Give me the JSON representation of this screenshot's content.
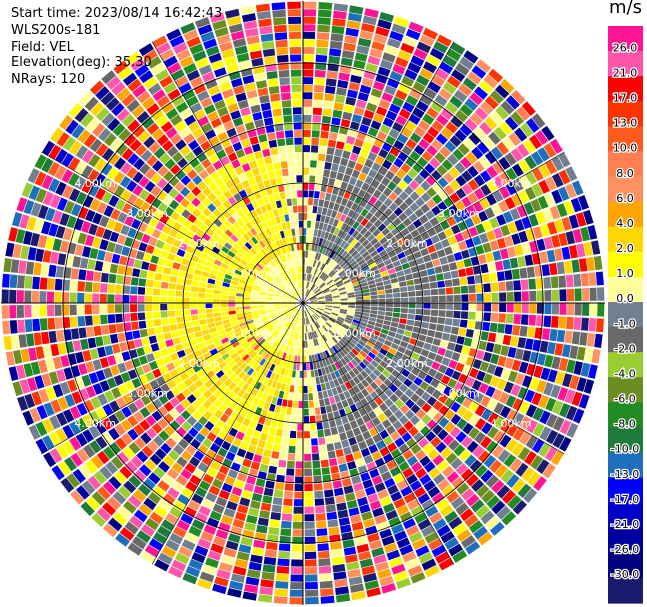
{
  "header": {
    "start_time": "Start time: 2023/08/14 16:42:43",
    "instrument": "WLS200s-181",
    "field": "Field: VEL",
    "elevation": "Elevation(deg): 35.30",
    "nrays": "NRays: 120"
  },
  "colorbar": {
    "unit": "m/s",
    "ticks": [
      "26.0",
      "21.0",
      "17.0",
      "13.0",
      "10.0",
      "8.0",
      "6.0",
      "4.0",
      "2.0",
      "1.0",
      "0.0",
      "-1.0",
      "-2.0",
      "-4.0",
      "-6.0",
      "-8.0",
      "-10.0",
      "-13.0",
      "-17.0",
      "-21.0",
      "-26.0",
      "-30.0"
    ],
    "colors": [
      "#ff1493",
      "#ff55aa",
      "#ff0000",
      "#ff3300",
      "#ff5a1e",
      "#ff7f50",
      "#ff9060",
      "#ffa500",
      "#ffd700",
      "#ffff00",
      "#ffff99",
      "#708090",
      "#696969",
      "#9acd32",
      "#6b8e23",
      "#228b22",
      "#1e7b3a",
      "#1e6ebe",
      "#0000ff",
      "#0000cd",
      "#0000a0",
      "#000080",
      "#1a1a70"
    ]
  },
  "chart_data": {
    "type": "heatmap",
    "subtype": "polar PPI (plan position indicator)",
    "field": "VEL",
    "units": "m/s",
    "nrays": 120,
    "elevation_deg": 35.3,
    "range_ring_labels": [
      "1.00km",
      "2.00km",
      "3.00km",
      "4.00km"
    ],
    "color_scale_min": -30.0,
    "color_scale_max": 26.0,
    "color_bins": [
      "26.0",
      "21.0",
      "17.0",
      "13.0",
      "10.0",
      "8.0",
      "6.0",
      "4.0",
      "2.0",
      "1.0",
      "0.0",
      "-1.0",
      "-2.0",
      "-4.0",
      "-6.0",
      "-8.0",
      "-10.0",
      "-13.0",
      "-17.0",
      "-21.0",
      "-26.0",
      "-30.0"
    ],
    "pattern": {
      "west_sector_inner": "positive velocities 1-4 m/s (yellow)",
      "east_sector_inner": "negative velocities -1 to -4 m/s (olive green)",
      "center": "near zero (grey)",
      "outer_ranges": "noisy, all color bins"
    }
  }
}
